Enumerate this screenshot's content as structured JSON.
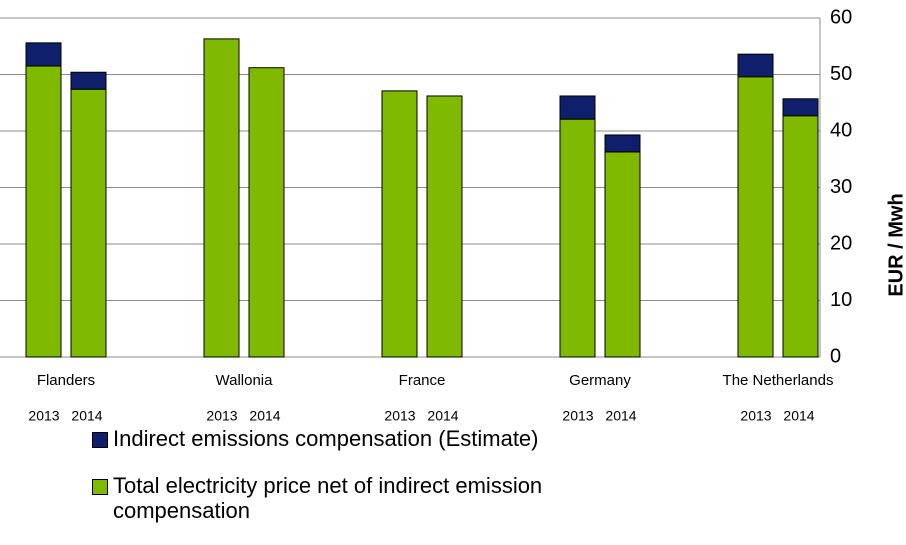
{
  "chart_data": {
    "type": "stacked-bar",
    "y_axis_label": "EUR / Mwh",
    "groups": [
      "Flanders",
      "Wallonia",
      "France",
      "Germany",
      "The Netherlands"
    ],
    "categories": [
      "2013",
      "2014",
      "2013",
      "2014",
      "2013",
      "2014",
      "2013",
      "2014",
      "2013",
      "2014"
    ],
    "series": [
      {
        "name": "Total electricity price net of indirect emission compensation",
        "color": "#7fba00",
        "values": [
          51.5,
          47.4,
          56.3,
          51.2,
          47.1,
          46.2,
          42.1,
          36.3,
          49.6,
          42.7
        ]
      },
      {
        "name": "Indirect emissions compensation (Estimate)",
        "color": "#0f1f6b",
        "values": [
          4.1,
          3.0,
          null,
          null,
          null,
          null,
          4.1,
          3.0,
          4.0,
          3.0
        ]
      }
    ],
    "legend_order": [
      1,
      0
    ],
    "ylim": [
      0,
      60
    ],
    "yticks": [
      0,
      10,
      20,
      30,
      40,
      50,
      60
    ],
    "grid": true
  }
}
